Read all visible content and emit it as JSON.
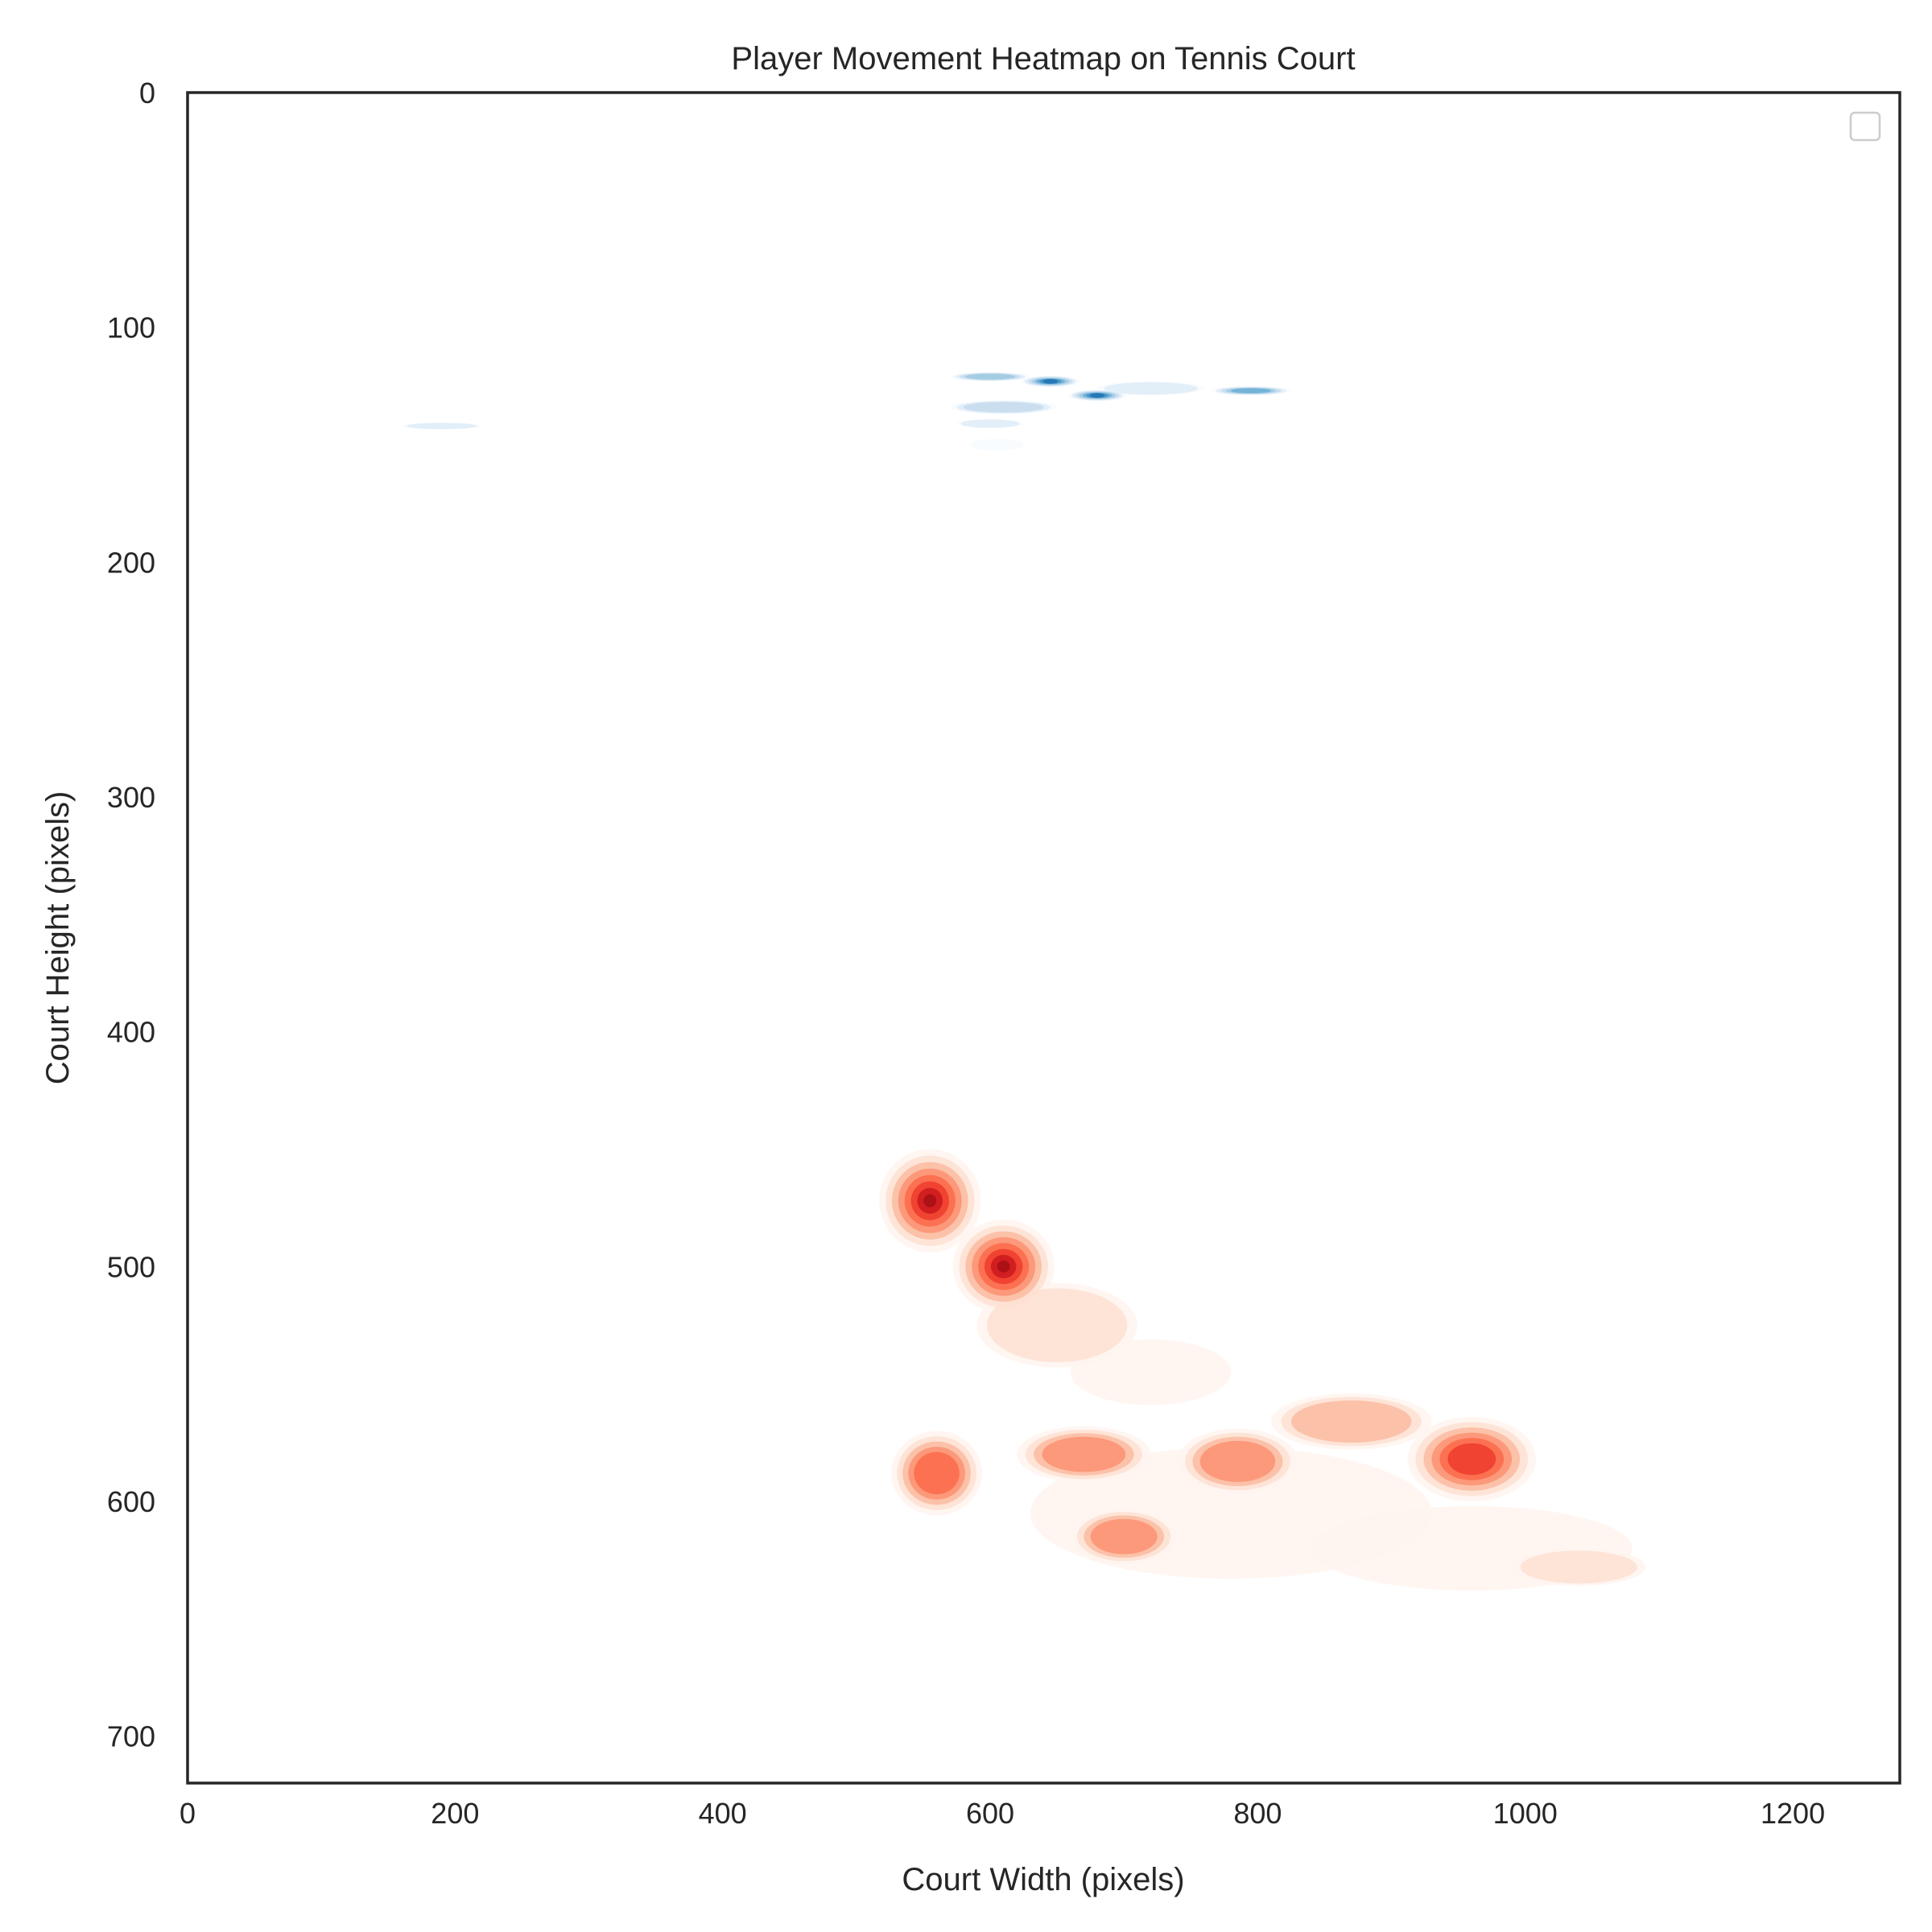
{
  "chart_data": {
    "type": "heatmap",
    "title": "Player Movement Heatmap on Tennis Court",
    "xlabel": "Court Width (pixels)",
    "ylabel": "Court Height (pixels)",
    "xlim": [
      0,
      1280
    ],
    "ylim": [
      720,
      0
    ],
    "y_inverted": true,
    "x_ticks": [
      0,
      200,
      400,
      600,
      800,
      1000,
      1200
    ],
    "y_ticks": [
      0,
      100,
      200,
      300,
      400,
      500,
      600,
      700
    ],
    "grid": false,
    "legend": {
      "placement": "top-right",
      "entries": []
    },
    "series": [
      {
        "colormap": "Blues",
        "colors": [
          "#f7fbff",
          "#deebf7",
          "#c6dbef",
          "#9ecae1",
          "#6baed6",
          "#4292c6",
          "#2171b5",
          "#08519c"
        ],
        "density_peaks": [
          {
            "x": 600,
            "y": 121,
            "rx": 30,
            "ry": 2,
            "weight": 0.55
          },
          {
            "x": 645,
            "y": 123,
            "rx": 22,
            "ry": 2.5,
            "weight": 0.9
          },
          {
            "x": 680,
            "y": 129,
            "rx": 22,
            "ry": 2.5,
            "weight": 0.9
          },
          {
            "x": 795,
            "y": 127,
            "rx": 30,
            "ry": 2,
            "weight": 0.6
          },
          {
            "x": 610,
            "y": 134,
            "rx": 40,
            "ry": 3,
            "weight": 0.4
          },
          {
            "x": 600,
            "y": 141,
            "rx": 25,
            "ry": 2,
            "weight": 0.25
          },
          {
            "x": 605,
            "y": 150,
            "rx": 20,
            "ry": 2.5,
            "weight": 0.12
          },
          {
            "x": 190,
            "y": 142,
            "rx": 30,
            "ry": 1.5,
            "weight": 0.25
          },
          {
            "x": 720,
            "y": 126,
            "rx": 40,
            "ry": 3,
            "weight": 0.2
          }
        ]
      },
      {
        "colormap": "Reds",
        "colors": [
          "#fff5f0",
          "#fee0d2",
          "#fcbba1",
          "#fc9272",
          "#fb6a4a",
          "#ef3b2c",
          "#cb181d",
          "#a50f15"
        ],
        "density_peaks": [
          {
            "x": 555,
            "y": 472,
            "rx": 38,
            "ry": 22,
            "weight": 1.0
          },
          {
            "x": 610,
            "y": 500,
            "rx": 38,
            "ry": 20,
            "weight": 1.0
          },
          {
            "x": 650,
            "y": 525,
            "rx": 60,
            "ry": 18,
            "weight": 0.3
          },
          {
            "x": 560,
            "y": 588,
            "rx": 34,
            "ry": 18,
            "weight": 0.6
          },
          {
            "x": 670,
            "y": 580,
            "rx": 50,
            "ry": 12,
            "weight": 0.45
          },
          {
            "x": 700,
            "y": 615,
            "rx": 40,
            "ry": 12,
            "weight": 0.45
          },
          {
            "x": 785,
            "y": 583,
            "rx": 45,
            "ry": 14,
            "weight": 0.45
          },
          {
            "x": 870,
            "y": 566,
            "rx": 60,
            "ry": 12,
            "weight": 0.4
          },
          {
            "x": 960,
            "y": 582,
            "rx": 48,
            "ry": 18,
            "weight": 0.7
          },
          {
            "x": 1040,
            "y": 628,
            "rx": 50,
            "ry": 8,
            "weight": 0.25
          },
          {
            "x": 780,
            "y": 605,
            "rx": 150,
            "ry": 28,
            "weight": 0.12
          },
          {
            "x": 960,
            "y": 620,
            "rx": 120,
            "ry": 18,
            "weight": 0.12
          },
          {
            "x": 720,
            "y": 545,
            "rx": 60,
            "ry": 14,
            "weight": 0.1
          }
        ]
      }
    ]
  }
}
